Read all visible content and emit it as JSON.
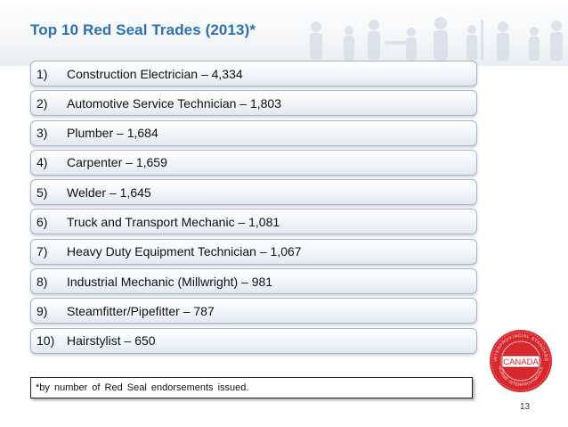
{
  "title": "Top 10 Red Seal Trades (2013)*",
  "items": [
    {
      "number": "1)",
      "text": "Construction Electrician – 4,334"
    },
    {
      "number": "2)",
      "text": "Automotive Service Technician – 1,803"
    },
    {
      "number": "3)",
      "text": "Plumber – 1,684"
    },
    {
      "number": "4)",
      "text": "Carpenter – 1,659"
    },
    {
      "number": "5)",
      "text": "Welder – 1,645"
    },
    {
      "number": "6)",
      "text": "Truck and Transport Mechanic – 1,081"
    },
    {
      "number": "7)",
      "text": "Heavy Duty Equipment Technician – 1,067"
    },
    {
      "number": "8)",
      "text": "Industrial Mechanic (Millwright) – 981"
    },
    {
      "number": "9)",
      "text": "Steamfitter/Pipefitter – 787"
    },
    {
      "number": "10)",
      "text": "Hairstylist – 650"
    }
  ],
  "footnote": "*by number of Red Seal endorsements issued.",
  "page_number": "13",
  "seal": {
    "center_text": "CANADA",
    "ring_text_top": "INTERPROVINCIAL STANDARD",
    "ring_text_bottom": "NORME INTERPROVINCIALE"
  },
  "colors": {
    "title": "#2d70b5",
    "seal_red": "#d8272d",
    "item_border": "#a3b6c8"
  }
}
